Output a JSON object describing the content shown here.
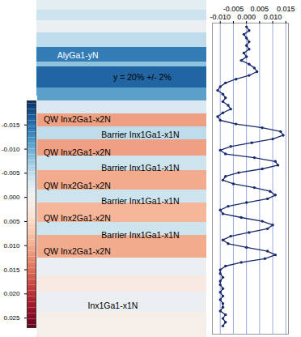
{
  "chart_data": [
    {
      "type": "heatmap",
      "tick_labels": false,
      "ylim": [
        0,
        416
      ],
      "cells": [
        {
          "y0": 0,
          "y1": 12,
          "value": -0.002
        },
        {
          "y0": 12,
          "y1": 25,
          "value": -0.004
        },
        {
          "y0": 25,
          "y1": 40,
          "value": -0.001
        },
        {
          "y0": 40,
          "y1": 58,
          "value": -0.005
        },
        {
          "y0": 58,
          "y1": 76,
          "value": -0.014
        },
        {
          "y0": 76,
          "y1": 82,
          "value": -0.008
        },
        {
          "y0": 82,
          "y1": 108,
          "value": -0.016
        },
        {
          "y0": 108,
          "y1": 124,
          "value": -0.011
        },
        {
          "y0": 124,
          "y1": 140,
          "value": -0.003
        },
        {
          "y0": 140,
          "y1": 156,
          "value": 0.011
        },
        {
          "y0": 156,
          "y1": 172,
          "value": -0.005
        },
        {
          "y0": 172,
          "y1": 192,
          "value": 0.011
        },
        {
          "y0": 192,
          "y1": 210,
          "value": -0.004
        },
        {
          "y0": 210,
          "y1": 234,
          "value": 0.01
        },
        {
          "y0": 234,
          "y1": 250,
          "value": -0.004
        },
        {
          "y0": 250,
          "y1": 274,
          "value": 0.009
        },
        {
          "y0": 274,
          "y1": 290,
          "value": -0.004
        },
        {
          "y0": 290,
          "y1": 318,
          "value": 0.01
        },
        {
          "y0": 318,
          "y1": 340,
          "value": -0.001
        },
        {
          "y0": 340,
          "y1": 360,
          "value": 0.002
        },
        {
          "y0": 360,
          "y1": 385,
          "value": -0.001
        },
        {
          "y0": 385,
          "y1": 416,
          "value": 0.001
        }
      ],
      "colorbar_range": [
        -0.02,
        0.027
      ],
      "colorbar_ticks": [
        {
          "value": -0.015,
          "label": "-0.015"
        },
        {
          "value": -0.01,
          "label": "-0.010"
        },
        {
          "value": -0.005,
          "label": "-0.005"
        },
        {
          "value": 0,
          "label": "0.000"
        },
        {
          "value": 0.005,
          "label": "0.005"
        },
        {
          "value": 0.01,
          "label": "0.010"
        },
        {
          "value": 0.015,
          "label": "0.015"
        },
        {
          "value": 0.02,
          "label": "0.020"
        },
        {
          "value": 0.025,
          "label": "0.025"
        }
      ],
      "annotations": [
        "AlyGa1-yN",
        "y = 20% +/- 2%",
        "QW Inx2Ga1-x2N",
        "QW Inx2Ga1-x2N",
        "QW Inx2Ga1-x2N",
        "QW Inx2Ga1-x2N",
        "QW Inx2Ga1-x2N",
        "Barrier Inx1Ga1-x1N",
        "Barrier Inx1Ga1-x1N",
        "Barrier Inx1Ga1-x1N",
        "Barrier Inx1Ga1-x1N",
        "Inx1Ga1-x1N"
      ]
    },
    {
      "type": "line",
      "color": "#1a2a6c",
      "marker": "circle",
      "grid": true,
      "tick_labels": "x",
      "xlim": [
        -0.013,
        0.016
      ],
      "xticks": [
        {
          "value": -0.01,
          "label": "-0.010"
        },
        {
          "value": -0.005,
          "label": "-0.005"
        },
        {
          "value": 0,
          "label": "0.000"
        },
        {
          "value": 0.005,
          "label": "0.005"
        },
        {
          "value": 0.01,
          "label": "0.010"
        },
        {
          "value": 0.015,
          "label": "0.015"
        }
      ],
      "ylim": [
        0,
        416
      ],
      "y": [
        5,
        10,
        15,
        20,
        25,
        30,
        35,
        40,
        45,
        50,
        55,
        60,
        65,
        70,
        75,
        80,
        85,
        90,
        95,
        100,
        105,
        110,
        115,
        120,
        125,
        130,
        135,
        140,
        145,
        150,
        155,
        160,
        165,
        170,
        175,
        180,
        185,
        190,
        195,
        200,
        205,
        210,
        215,
        220,
        225,
        230,
        235,
        240,
        245,
        250,
        255,
        260,
        265,
        270,
        275,
        280,
        285,
        290,
        295,
        300,
        305,
        310,
        315,
        320,
        325,
        330,
        335,
        340,
        345,
        350,
        355,
        360,
        365,
        370,
        375,
        380,
        385,
        390,
        395,
        400,
        405
      ],
      "x": [
        0.0,
        0.001,
        -0.001,
        0.0,
        0.001,
        0.0,
        0.001,
        -0.001,
        0.0,
        -0.002,
        0.001,
        0.003,
        0.004,
        0.001,
        -0.004,
        -0.008,
        -0.01,
        -0.011,
        -0.009,
        -0.008,
        -0.009,
        -0.007,
        -0.006,
        -0.009,
        -0.011,
        -0.01,
        -0.004,
        0.006,
        0.013,
        0.014,
        0.01,
        0.002,
        -0.006,
        -0.01,
        -0.008,
        0.003,
        0.011,
        0.012,
        0.006,
        -0.003,
        -0.008,
        -0.009,
        -0.005,
        0.003,
        0.009,
        0.011,
        0.008,
        0.0,
        -0.007,
        -0.01,
        -0.009,
        -0.002,
        0.006,
        0.01,
        0.008,
        0.001,
        -0.006,
        -0.009,
        -0.007,
        0.0,
        0.008,
        0.011,
        0.007,
        -0.002,
        -0.008,
        -0.01,
        -0.01,
        -0.009,
        -0.01,
        -0.01,
        -0.009,
        -0.01,
        -0.009,
        -0.01,
        -0.009,
        -0.009,
        -0.01,
        -0.008,
        -0.009,
        -0.008,
        -0.009
      ]
    }
  ]
}
